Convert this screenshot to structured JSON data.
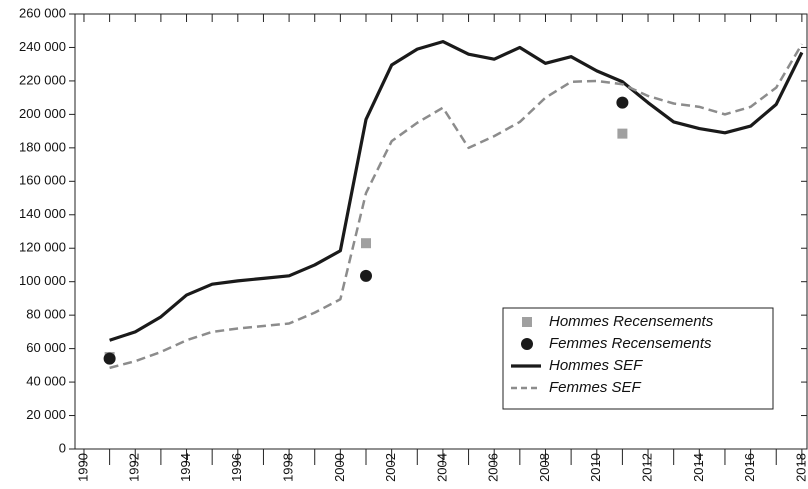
{
  "chart_data": {
    "type": "line",
    "x": [
      1991,
      1992,
      1993,
      1994,
      1995,
      1996,
      1997,
      1998,
      1999,
      2000,
      2001,
      2002,
      2003,
      2004,
      2005,
      2006,
      2007,
      2008,
      2009,
      2010,
      2011,
      2012,
      2013,
      2014,
      2015,
      2016,
      2017,
      2018
    ],
    "series": [
      {
        "name": "Hommes Recensements",
        "type": "scatter",
        "marker": "square",
        "color": "#a0a0a0",
        "x": [
          1991,
          2001,
          2011
        ],
        "values": [
          55000,
          123000,
          188500
        ]
      },
      {
        "name": "Femmes Recensements",
        "type": "scatter",
        "marker": "circle",
        "color": "#1a1a1a",
        "x": [
          1991,
          2001,
          2011
        ],
        "values": [
          54000,
          103500,
          207000
        ]
      },
      {
        "name": "Hommes SEF",
        "type": "line",
        "dash": "solid",
        "color": "#1a1a1a",
        "values": [
          65000,
          70000,
          79000,
          92000,
          98500,
          100500,
          102000,
          103500,
          110000,
          118500,
          197000,
          229500,
          239000,
          243500,
          236000,
          233000,
          240000,
          230500,
          234500,
          226000,
          219500,
          207000,
          195500,
          191500,
          189000,
          193000,
          206000,
          237000
        ]
      },
      {
        "name": "Femmes SEF",
        "type": "line",
        "dash": "dashed",
        "color": "#8c8c8c",
        "values": [
          48500,
          52500,
          58000,
          65000,
          70000,
          72000,
          73500,
          75000,
          81500,
          89500,
          153000,
          184000,
          195000,
          204000,
          180000,
          187000,
          195500,
          210000,
          219500,
          220000,
          218000,
          211000,
          206500,
          204500,
          200000,
          204500,
          216000,
          242000
        ]
      }
    ],
    "xlim": [
      1989.65,
      2018.2
    ],
    "xticks": [
      1990,
      1992,
      1994,
      1996,
      1998,
      2000,
      2002,
      2004,
      2006,
      2008,
      2010,
      2012,
      2014,
      2016,
      2018
    ],
    "x_minor_ticks": [
      1991,
      1993,
      1995,
      1997,
      1999,
      2001,
      2003,
      2005,
      2007,
      2009,
      2011,
      2013,
      2015,
      2017
    ],
    "ylim": [
      0,
      260000
    ],
    "yticks": [
      {
        "value": 0,
        "label": "0"
      },
      {
        "value": 20000,
        "label": "20 000"
      },
      {
        "value": 40000,
        "label": "40 000"
      },
      {
        "value": 60000,
        "label": "60 000"
      },
      {
        "value": 80000,
        "label": "80 000"
      },
      {
        "value": 100000,
        "label": "100 000"
      },
      {
        "value": 120000,
        "label": "120 000"
      },
      {
        "value": 140000,
        "label": "140 000"
      },
      {
        "value": 160000,
        "label": "160 000"
      },
      {
        "value": 180000,
        "label": "180 000"
      },
      {
        "value": 200000,
        "label": "200 000"
      },
      {
        "value": 220000,
        "label": "220 000"
      },
      {
        "value": 240000,
        "label": "240 000"
      },
      {
        "value": 260000,
        "label": "260 000"
      }
    ],
    "legend": "lower right"
  }
}
